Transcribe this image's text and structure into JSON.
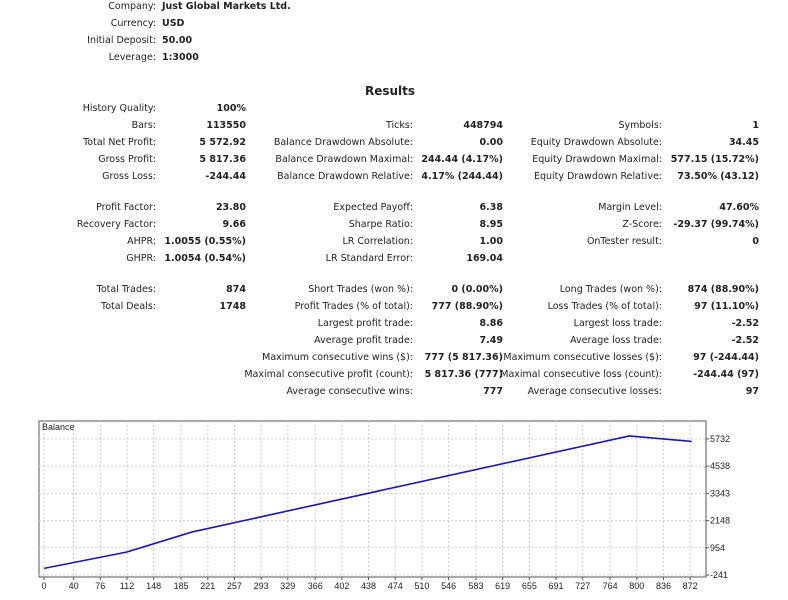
{
  "header": [
    {
      "label": "Company:",
      "value": "Just Global Markets Ltd."
    },
    {
      "label": "Currency:",
      "value": "USD"
    },
    {
      "label": "Initial Deposit:",
      "value": "50.00"
    },
    {
      "label": "Leverage:",
      "value": "1:3000"
    }
  ],
  "results_title": "Results",
  "rows": [
    [
      "History Quality:",
      "100%",
      "",
      "",
      "",
      ""
    ],
    [
      "Bars:",
      "113550",
      "Ticks:",
      "448794",
      "Symbols:",
      "1"
    ],
    [
      "Total Net Profit:",
      "5 572.92",
      "Balance Drawdown Absolute:",
      "0.00",
      "Equity Drawdown Absolute:",
      "34.45"
    ],
    [
      "Gross Profit:",
      "5 817.36",
      "Balance Drawdown Maximal:",
      "244.44 (4.17%)",
      "Equity Drawdown Maximal:",
      "577.15 (15.72%)"
    ],
    [
      "Gross Loss:",
      "-244.44",
      "Balance Drawdown Relative:",
      "4.17% (244.44)",
      "Equity Drawdown Relative:",
      "73.50% (43.12)"
    ],
    null,
    [
      "Profit Factor:",
      "23.80",
      "Expected Payoff:",
      "6.38",
      "Margin Level:",
      "47.60%"
    ],
    [
      "Recovery Factor:",
      "9.66",
      "Sharpe Ratio:",
      "8.95",
      "Z-Score:",
      "-29.37 (99.74%)"
    ],
    [
      "AHPR:",
      "1.0055 (0.55%)",
      "LR Correlation:",
      "1.00",
      "OnTester result:",
      "0"
    ],
    [
      "GHPR:",
      "1.0054 (0.54%)",
      "LR Standard Error:",
      "169.04",
      "",
      ""
    ],
    null,
    [
      "Total Trades:",
      "874",
      "Short Trades (won %):",
      "0 (0.00%)",
      "Long Trades (won %):",
      "874 (88.90%)"
    ],
    [
      "Total Deals:",
      "1748",
      "Profit Trades (% of total):",
      "777 (88.90%)",
      "Loss Trades (% of total):",
      "97 (11.10%)"
    ],
    [
      "",
      "",
      "Largest profit trade:",
      "8.86",
      "Largest loss trade:",
      "-2.52"
    ],
    [
      "",
      "",
      "Average profit trade:",
      "7.49",
      "Average loss trade:",
      "-2.52"
    ],
    [
      "",
      "",
      "Maximum consecutive wins ($):",
      "777 (5 817.36)",
      "Maximum consecutive losses ($):",
      "97 (-244.44)"
    ],
    [
      "",
      "",
      "Maximal consecutive profit (count):",
      "5 817.36 (777)",
      "Maximal consecutive loss (count):",
      "-244.44 (97)"
    ],
    [
      "",
      "",
      "Average consecutive wins:",
      "777",
      "Average consecutive losses:",
      "97"
    ]
  ],
  "chart_data": {
    "type": "line",
    "title": "Balance",
    "x_ticks": [
      0,
      40,
      76,
      112,
      148,
      185,
      221,
      257,
      293,
      329,
      366,
      402,
      438,
      474,
      510,
      546,
      583,
      619,
      655,
      691,
      727,
      764,
      800,
      836,
      872
    ],
    "y_ticks": [
      -241,
      954,
      2148,
      3343,
      4538,
      5732
    ],
    "xlim": [
      0,
      890
    ],
    "ylim": [
      -241,
      6500
    ],
    "grid": true,
    "line_color": "#1a1aa6",
    "series": [
      {
        "x": [
          0,
          112,
          200,
          790,
          874
        ],
        "y": [
          50,
          770,
          1650,
          5867,
          5623
        ]
      }
    ]
  }
}
